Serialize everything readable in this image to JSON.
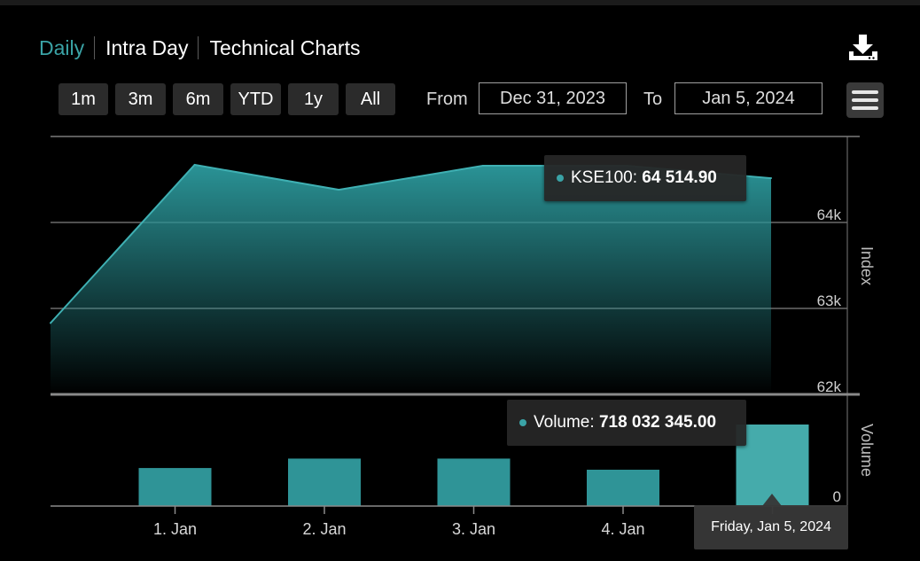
{
  "tabs": [
    {
      "label": "Daily",
      "active": true
    },
    {
      "label": "Intra Day",
      "active": false
    },
    {
      "label": "Technical Charts",
      "active": false
    }
  ],
  "range_buttons": [
    "1m",
    "3m",
    "6m",
    "YTD",
    "1y",
    "All"
  ],
  "date_range": {
    "from_label": "From",
    "from_value": "Dec 31, 2023",
    "to_label": "To",
    "to_value": "Jan 5, 2024"
  },
  "icons": {
    "download": "download-icon",
    "menu": "hamburger-menu-icon"
  },
  "colors": {
    "accent": "#3aa3a6",
    "area_top": "#2a9396",
    "bar": "#2f9497",
    "bar_hover": "#45abab"
  },
  "tooltips": {
    "index": {
      "series": "KSE100",
      "value": "64 514.90"
    },
    "volume": {
      "series": "Volume",
      "value": "718 032 345.00"
    },
    "date": "Friday, Jan 5, 2024"
  },
  "chart_data": [
    {
      "type": "area",
      "ylabel": "Index",
      "yticks": [
        "62k",
        "63k",
        "64k"
      ],
      "ylim": [
        62000,
        65000
      ],
      "x": [
        "2023-12-31",
        "2024-01-01",
        "2024-01-02",
        "2024-01-03",
        "2024-01-04",
        "2024-01-05"
      ],
      "series": [
        {
          "name": "KSE100",
          "values": [
            62830,
            64670,
            64380,
            64660,
            64660,
            64514.9
          ]
        }
      ],
      "grid": true
    },
    {
      "type": "bar",
      "ylabel": "Volume",
      "yticks": [
        "0"
      ],
      "categories": [
        "1. Jan",
        "2. Jan",
        "3. Jan",
        "4. Jan",
        "5. Jan"
      ],
      "xtick_labels": [
        "1. Jan",
        "2. Jan",
        "3. Jan",
        "4. Jan",
        ""
      ],
      "series": [
        {
          "name": "Volume",
          "values": [
            335000000,
            418000000,
            418000000,
            320000000,
            718032345.0
          ]
        }
      ],
      "highlighted_index": 4
    }
  ]
}
